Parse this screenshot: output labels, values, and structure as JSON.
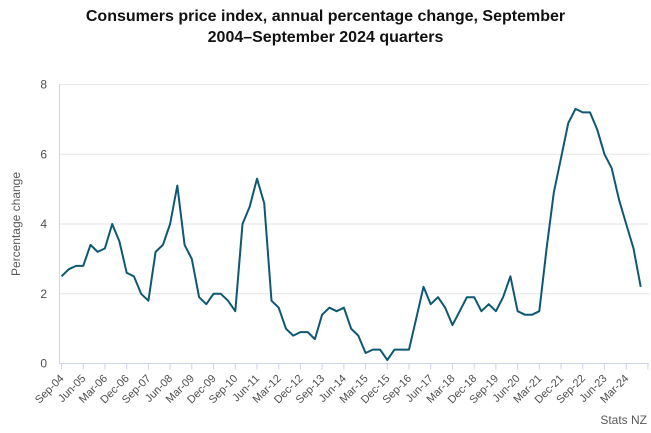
{
  "header": {
    "title_line1": "Consumers price index, annual percentage change, September",
    "title_line2": "2004–September 2024 quarters"
  },
  "source": {
    "label": "Stats NZ"
  },
  "chart_data": {
    "type": "line",
    "title": "Consumers price index, annual percentage change, September 2004–September 2024 quarters",
    "xlabel": "",
    "ylabel": "Percentage change",
    "ylim": [
      0,
      8
    ],
    "yticks": [
      0,
      2,
      4,
      6,
      8
    ],
    "grid": "horizontal",
    "legend": "none",
    "source": "Stats NZ",
    "x": [
      "Sep-04",
      "Dec-04",
      "Mar-05",
      "Jun-05",
      "Sep-05",
      "Dec-05",
      "Mar-06",
      "Jun-06",
      "Sep-06",
      "Dec-06",
      "Mar-07",
      "Jun-07",
      "Sep-07",
      "Dec-07",
      "Mar-08",
      "Jun-08",
      "Sep-08",
      "Dec-08",
      "Mar-09",
      "Jun-09",
      "Sep-09",
      "Dec-09",
      "Mar-10",
      "Jun-10",
      "Sep-10",
      "Dec-10",
      "Mar-11",
      "Jun-11",
      "Sep-11",
      "Dec-11",
      "Mar-12",
      "Jun-12",
      "Sep-12",
      "Dec-12",
      "Mar-13",
      "Jun-13",
      "Sep-13",
      "Dec-13",
      "Mar-14",
      "Jun-14",
      "Sep-14",
      "Dec-14",
      "Mar-15",
      "Jun-15",
      "Sep-15",
      "Dec-15",
      "Mar-16",
      "Jun-16",
      "Sep-16",
      "Dec-16",
      "Mar-17",
      "Jun-17",
      "Sep-17",
      "Dec-17",
      "Mar-18",
      "Jun-18",
      "Sep-18",
      "Dec-18",
      "Mar-19",
      "Jun-19",
      "Sep-19",
      "Dec-19",
      "Mar-20",
      "Jun-20",
      "Sep-20",
      "Dec-20",
      "Mar-21",
      "Jun-21",
      "Sep-21",
      "Dec-21",
      "Mar-22",
      "Jun-22",
      "Sep-22",
      "Dec-22",
      "Mar-23",
      "Jun-23",
      "Sep-23",
      "Dec-23",
      "Mar-24",
      "Jun-24",
      "Sep-24"
    ],
    "values": [
      2.5,
      2.7,
      2.8,
      2.8,
      3.4,
      3.2,
      3.3,
      4.0,
      3.5,
      2.6,
      2.5,
      2.0,
      1.8,
      3.2,
      3.4,
      4.0,
      5.1,
      3.4,
      3.0,
      1.9,
      1.7,
      2.0,
      2.0,
      1.8,
      1.5,
      4.0,
      4.5,
      5.3,
      4.6,
      1.8,
      1.6,
      1.0,
      0.8,
      0.9,
      0.9,
      0.7,
      1.4,
      1.6,
      1.5,
      1.6,
      1.0,
      0.8,
      0.3,
      0.4,
      0.4,
      0.1,
      0.4,
      0.4,
      0.4,
      1.3,
      2.2,
      1.7,
      1.9,
      1.6,
      1.1,
      1.5,
      1.9,
      1.9,
      1.5,
      1.7,
      1.5,
      1.9,
      2.5,
      1.5,
      1.4,
      1.4,
      1.5,
      3.3,
      4.9,
      5.9,
      6.9,
      7.3,
      7.2,
      7.2,
      6.7,
      6.0,
      5.6,
      4.7,
      4.0,
      3.3,
      2.2
    ],
    "xtick_every": 3,
    "xtick_labels": [
      "Sep-04",
      "Jun-05",
      "Mar-06",
      "Dec-06",
      "Sep-07",
      "Jun-08",
      "Mar-09",
      "Dec-09",
      "Sep-10",
      "Jun-11",
      "Mar-12",
      "Dec-12",
      "Sep-13",
      "Jun-14",
      "Mar-15",
      "Dec-15",
      "Sep-16",
      "Jun-17",
      "Mar-18",
      "Dec-18",
      "Sep-19",
      "Jun-20",
      "Mar-21",
      "Dec-21",
      "Sep-22",
      "Jun-23",
      "Mar-24"
    ],
    "colors": {
      "line": "#0e5873",
      "grid": "#e6e6e9",
      "axis": "#ccd3ec",
      "tick_text": "#4f4f4f",
      "muted_text": "#595959",
      "title_text": "#111111"
    }
  }
}
